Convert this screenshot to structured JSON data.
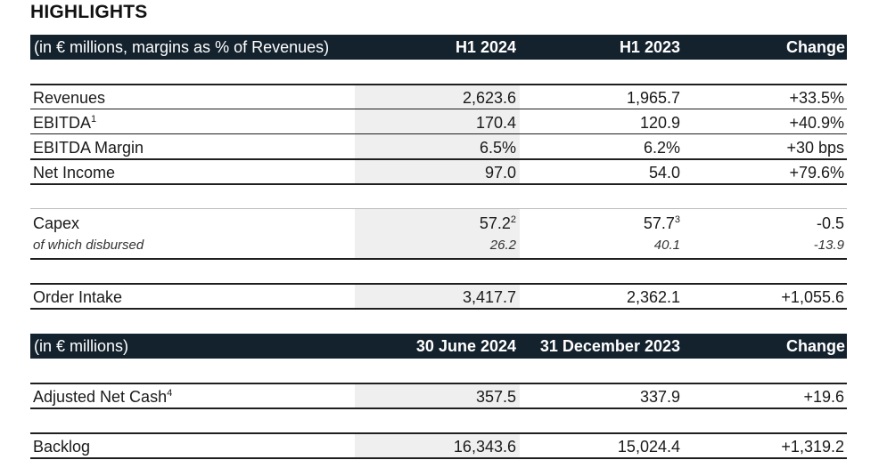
{
  "title": "HIGHLIGHTS",
  "table1": {
    "header": [
      "(in € millions, margins as % of Revenues)",
      "H1 2024",
      "H1 2023",
      "Change"
    ],
    "rows": [
      {
        "label": "Revenues",
        "h1_2024": "2,623.6",
        "h1_2023": "1,965.7",
        "change": "+33.5%"
      },
      {
        "label": "EBITDA",
        "sup": "1",
        "h1_2024": "170.4",
        "h1_2023": "120.9",
        "change": "+40.9%"
      },
      {
        "label": "EBITDA Margin",
        "h1_2024": "6.5%",
        "h1_2023": "6.2%",
        "change": "+30 bps"
      },
      {
        "label": "Net Income",
        "h1_2024": "97.0",
        "h1_2023": "54.0",
        "change": "+79.6%"
      },
      {
        "label": "Capex",
        "h1_2024": "57.2",
        "h1_2024_sup": "2",
        "h1_2023": "57.7",
        "h1_2023_sup": "3",
        "change": "-0.5"
      },
      {
        "label": "of which disbursed",
        "h1_2024": "26.2",
        "h1_2023": "40.1",
        "change": "-13.9"
      },
      {
        "label": "Order Intake",
        "h1_2024": "3,417.7",
        "h1_2023": "2,362.1",
        "change": "+1,055.6"
      }
    ]
  },
  "table2": {
    "header": [
      "(in € millions)",
      "30 June 2024",
      "31 December 2023",
      "Change"
    ],
    "rows": [
      {
        "label": "Adjusted Net Cash",
        "sup": "4",
        "jun_2024": "357.5",
        "dec_2023": "337.9",
        "change": "+19.6"
      },
      {
        "label": "Backlog",
        "jun_2024": "16,343.6",
        "dec_2023": "15,024.4",
        "change": "+1,319.2"
      }
    ]
  },
  "colors": {
    "header_bg": "#14222e",
    "shade": "#efefef",
    "rule": "#1f1f1f"
  }
}
